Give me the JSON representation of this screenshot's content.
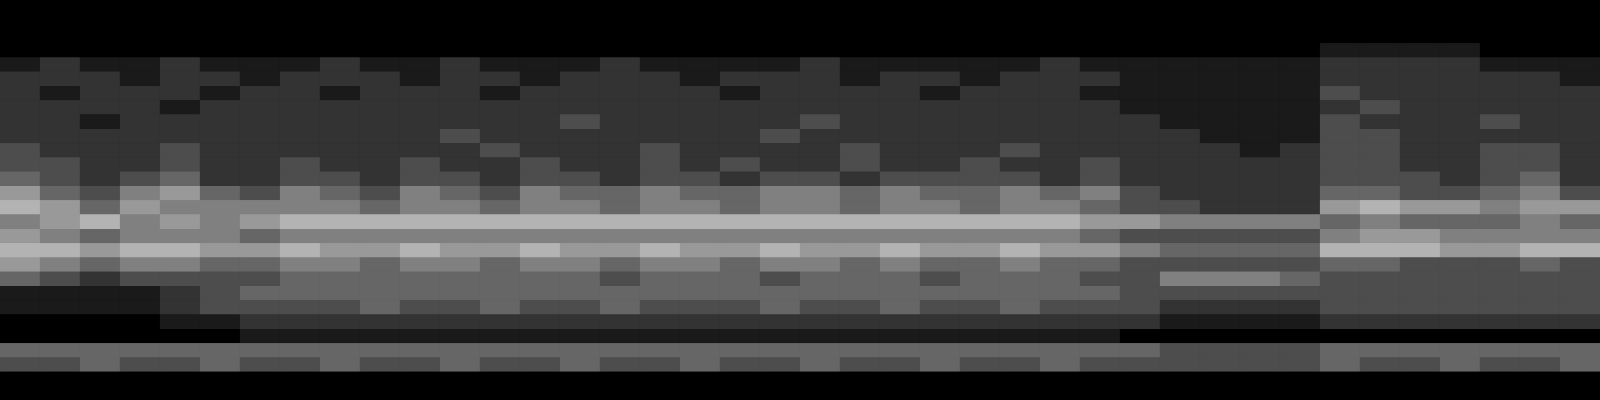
{
  "chart_data": {
    "type": "heatmap",
    "tick_labels": false,
    "color": "#e6e6e6",
    "color_range": [
      0,
      9
    ],
    "cells": [
      [
        0,
        0,
        0,
        0,
        0,
        0,
        0,
        0,
        0,
        0,
        0,
        0,
        0,
        0,
        0,
        0,
        0,
        0,
        0,
        0,
        0,
        0,
        0,
        0,
        0,
        0,
        0,
        0,
        0,
        0,
        0,
        0,
        0,
        0,
        0,
        0,
        0,
        0,
        0,
        0
      ],
      [
        0,
        0,
        0,
        0,
        0,
        0,
        0,
        0,
        0,
        0,
        0,
        0,
        0,
        0,
        0,
        0,
        0,
        0,
        0,
        0,
        0,
        0,
        0,
        0,
        0,
        0,
        0,
        0,
        0,
        0,
        0,
        0,
        0,
        0,
        0,
        0,
        0,
        0,
        0,
        0
      ],
      [
        0,
        0,
        0,
        0,
        0,
        0,
        0,
        0,
        0,
        0,
        0,
        0,
        0,
        0,
        0,
        0,
        0,
        0,
        0,
        0,
        0,
        0,
        0,
        0,
        0,
        0,
        0,
        0,
        0,
        0,
        0,
        0,
        0,
        0,
        0,
        0,
        0,
        0,
        0,
        0
      ],
      [
        0,
        0,
        0,
        0,
        0,
        0,
        0,
        0,
        0,
        0,
        0,
        0,
        0,
        0,
        0,
        0,
        0,
        0,
        0,
        0,
        0,
        0,
        0,
        0,
        0,
        0,
        0,
        0,
        0,
        0,
        0,
        0,
        0,
        1,
        1,
        1,
        1,
        0,
        0,
        0
      ],
      [
        1,
        2,
        1,
        1,
        2,
        1,
        1,
        1,
        2,
        1,
        1,
        2,
        1,
        1,
        1,
        2,
        1,
        1,
        1,
        1,
        2,
        1,
        1,
        1,
        1,
        1,
        2,
        1,
        1,
        1,
        1,
        1,
        1,
        2,
        2,
        2,
        2,
        1,
        1,
        1
      ],
      [
        2,
        2,
        2,
        1,
        2,
        2,
        1,
        2,
        2,
        2,
        1,
        2,
        2,
        1,
        2,
        2,
        2,
        1,
        2,
        2,
        2,
        1,
        2,
        2,
        1,
        2,
        2,
        2,
        1,
        1,
        1,
        1,
        1,
        2,
        2,
        2,
        2,
        2,
        2,
        1
      ],
      [
        2,
        1,
        2,
        2,
        2,
        1,
        2,
        2,
        1,
        2,
        2,
        2,
        1,
        2,
        2,
        2,
        2,
        2,
        1,
        2,
        2,
        2,
        2,
        1,
        2,
        2,
        2,
        1,
        1,
        1,
        1,
        1,
        1,
        3,
        2,
        2,
        2,
        2,
        2,
        2
      ],
      [
        2,
        2,
        2,
        2,
        1,
        2,
        2,
        2,
        2,
        2,
        2,
        2,
        2,
        2,
        2,
        2,
        2,
        2,
        2,
        2,
        2,
        2,
        2,
        2,
        2,
        2,
        2,
        2,
        1,
        1,
        1,
        1,
        1,
        2,
        3,
        2,
        2,
        2,
        2,
        2
      ],
      [
        2,
        2,
        1,
        2,
        2,
        2,
        2,
        2,
        2,
        2,
        2,
        2,
        2,
        2,
        3,
        2,
        2,
        2,
        2,
        2,
        3,
        2,
        2,
        2,
        2,
        2,
        2,
        2,
        2,
        1,
        1,
        1,
        1,
        3,
        2,
        2,
        2,
        3,
        2,
        2
      ],
      [
        2,
        2,
        2,
        2,
        2,
        2,
        2,
        2,
        2,
        2,
        2,
        3,
        2,
        2,
        2,
        2,
        2,
        2,
        2,
        3,
        2,
        2,
        2,
        2,
        2,
        2,
        2,
        2,
        2,
        2,
        1,
        1,
        1,
        3,
        3,
        2,
        2,
        2,
        2,
        2
      ],
      [
        3,
        2,
        2,
        2,
        3,
        2,
        2,
        2,
        2,
        2,
        2,
        2,
        3,
        2,
        2,
        2,
        3,
        2,
        2,
        2,
        2,
        3,
        2,
        2,
        2,
        3,
        2,
        2,
        2,
        2,
        2,
        1,
        2,
        3,
        3,
        2,
        2,
        3,
        3,
        2
      ],
      [
        3,
        3,
        2,
        2,
        3,
        2,
        2,
        3,
        2,
        2,
        3,
        2,
        2,
        3,
        2,
        2,
        3,
        2,
        3,
        2,
        2,
        3,
        2,
        2,
        3,
        2,
        2,
        3,
        2,
        2,
        2,
        2,
        2,
        3,
        3,
        2,
        2,
        3,
        3,
        2
      ],
      [
        4,
        3,
        2,
        3,
        4,
        2,
        2,
        3,
        3,
        2,
        3,
        3,
        2,
        3,
        3,
        2,
        3,
        3,
        2,
        3,
        3,
        2,
        3,
        3,
        3,
        3,
        2,
        3,
        2,
        2,
        2,
        2,
        2,
        3,
        3,
        3,
        2,
        3,
        4,
        2
      ],
      [
        6,
        4,
        3,
        5,
        6,
        4,
        3,
        5,
        4,
        3,
        5,
        4,
        3,
        5,
        4,
        4,
        5,
        4,
        4,
        5,
        5,
        4,
        5,
        4,
        4,
        5,
        4,
        5,
        3,
        2,
        2,
        2,
        2,
        4,
        4,
        3,
        3,
        4,
        5,
        3
      ],
      [
        7,
        6,
        4,
        6,
        5,
        5,
        5,
        5,
        5,
        4,
        5,
        5,
        4,
        5,
        5,
        4,
        5,
        5,
        4,
        5,
        5,
        4,
        5,
        5,
        4,
        5,
        5,
        4,
        3,
        3,
        2,
        2,
        2,
        6,
        7,
        6,
        6,
        5,
        6,
        6
      ],
      [
        5,
        6,
        7,
        5,
        6,
        5,
        6,
        7,
        7,
        7,
        7,
        7,
        7,
        7,
        7,
        7,
        7,
        7,
        7,
        7,
        7,
        7,
        7,
        7,
        7,
        7,
        7,
        6,
        6,
        5,
        5,
        5,
        5,
        4,
        5,
        4,
        4,
        4,
        5,
        4
      ],
      [
        6,
        5,
        4,
        5,
        5,
        5,
        4,
        5,
        5,
        5,
        5,
        5,
        5,
        5,
        5,
        5,
        5,
        5,
        5,
        5,
        5,
        5,
        5,
        5,
        5,
        5,
        5,
        4,
        3,
        3,
        3,
        3,
        3,
        5,
        6,
        6,
        5,
        5,
        5,
        5
      ],
      [
        7,
        7,
        6,
        7,
        7,
        6,
        6,
        7,
        6,
        6,
        7,
        6,
        6,
        7,
        6,
        6,
        7,
        6,
        6,
        7,
        6,
        6,
        7,
        6,
        6,
        7,
        6,
        6,
        5,
        4,
        4,
        4,
        4,
        7,
        7,
        7,
        6,
        6,
        7,
        7
      ],
      [
        6,
        5,
        4,
        5,
        5,
        4,
        4,
        5,
        5,
        4,
        5,
        5,
        4,
        5,
        5,
        4,
        5,
        5,
        4,
        5,
        5,
        4,
        5,
        4,
        4,
        5,
        4,
        4,
        3,
        3,
        3,
        3,
        3,
        4,
        4,
        3,
        3,
        3,
        4,
        3
      ],
      [
        4,
        3,
        2,
        3,
        3,
        3,
        3,
        4,
        4,
        4,
        4,
        4,
        4,
        4,
        4,
        3,
        4,
        4,
        4,
        3,
        4,
        4,
        4,
        3,
        4,
        4,
        4,
        3,
        3,
        5,
        5,
        5,
        4,
        3,
        3,
        3,
        3,
        3,
        3,
        3
      ],
      [
        1,
        1,
        1,
        1,
        2,
        3,
        4,
        4,
        4,
        4,
        4,
        4,
        4,
        4,
        4,
        4,
        4,
        4,
        4,
        4,
        4,
        4,
        4,
        4,
        4,
        4,
        4,
        4,
        3,
        3,
        3,
        3,
        3,
        3,
        3,
        3,
        3,
        3,
        3,
        3
      ],
      [
        1,
        1,
        1,
        1,
        2,
        3,
        3,
        3,
        3,
        4,
        3,
        3,
        4,
        3,
        3,
        4,
        3,
        3,
        3,
        4,
        3,
        3,
        4,
        3,
        3,
        4,
        3,
        3,
        3,
        2,
        2,
        2,
        2,
        3,
        3,
        3,
        3,
        3,
        3,
        3
      ],
      [
        0,
        0,
        0,
        0,
        1,
        1,
        2,
        2,
        2,
        2,
        2,
        2,
        2,
        2,
        2,
        2,
        2,
        2,
        2,
        2,
        2,
        2,
        2,
        2,
        2,
        2,
        2,
        2,
        2,
        1,
        1,
        1,
        1,
        2,
        2,
        2,
        2,
        2,
        2,
        2
      ],
      [
        0,
        0,
        0,
        0,
        0,
        0,
        1,
        1,
        1,
        1,
        1,
        1,
        1,
        1,
        1,
        1,
        1,
        1,
        1,
        1,
        1,
        1,
        1,
        1,
        1,
        1,
        1,
        1,
        0,
        0,
        0,
        0,
        0,
        0,
        0,
        0,
        0,
        0,
        0,
        0
      ],
      [
        4,
        4,
        4,
        4,
        4,
        4,
        4,
        4,
        4,
        4,
        4,
        4,
        4,
        4,
        4,
        4,
        4,
        4,
        4,
        4,
        4,
        4,
        4,
        4,
        4,
        4,
        4,
        4,
        4,
        3,
        3,
        3,
        3,
        4,
        4,
        4,
        4,
        4,
        4,
        4
      ],
      [
        3,
        3,
        4,
        3,
        3,
        4,
        3,
        3,
        4,
        3,
        3,
        4,
        3,
        3,
        4,
        3,
        3,
        4,
        3,
        3,
        4,
        3,
        3,
        4,
        3,
        3,
        4,
        3,
        3,
        3,
        3,
        3,
        3,
        4,
        3,
        3,
        4,
        3,
        3,
        4
      ],
      [
        0,
        0,
        0,
        0,
        0,
        0,
        0,
        0,
        0,
        0,
        0,
        0,
        0,
        0,
        0,
        0,
        0,
        0,
        0,
        0,
        0,
        0,
        0,
        0,
        0,
        0,
        0,
        0,
        0,
        0,
        0,
        0,
        0,
        0,
        0,
        0,
        0,
        0,
        0,
        0
      ],
      [
        0,
        0,
        0,
        0,
        0,
        0,
        0,
        0,
        0,
        0,
        0,
        0,
        0,
        0,
        0,
        0,
        0,
        0,
        0,
        0,
        0,
        0,
        0,
        0,
        0,
        0,
        0,
        0,
        0,
        0,
        0,
        0,
        0,
        0,
        0,
        0,
        0,
        0,
        0,
        0
      ]
    ]
  }
}
